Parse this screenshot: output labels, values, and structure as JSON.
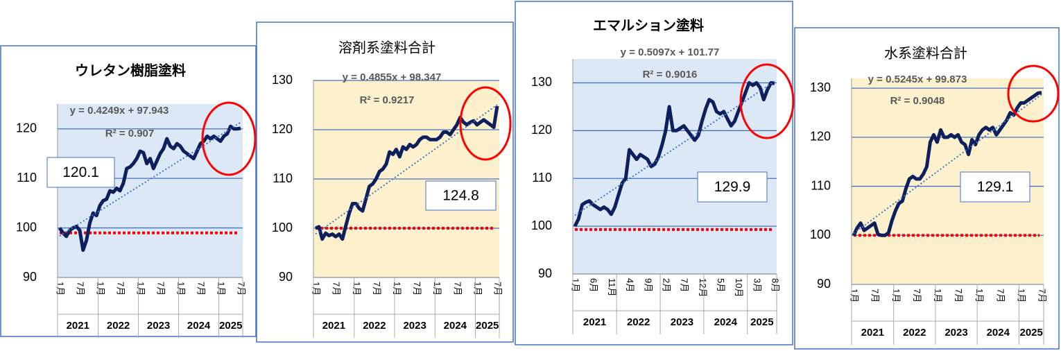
{
  "chart_data": [
    {
      "type": "line",
      "title": "ウレタン樹脂塗料",
      "categories": [
        "1月",
        null,
        null,
        null,
        null,
        null,
        "7月",
        null,
        null,
        null,
        null,
        null,
        "1月",
        null,
        null,
        null,
        null,
        null,
        "7月",
        null,
        null,
        null,
        null,
        null,
        "1月",
        null,
        null,
        null,
        null,
        null,
        "7月",
        null,
        null,
        null,
        null,
        null,
        "1月",
        null,
        null,
        null,
        null,
        null,
        "7月",
        null,
        null,
        null,
        null,
        null,
        "1月",
        null,
        null,
        null,
        null,
        null,
        "7月"
      ],
      "groups": [
        "2021",
        "2022",
        "2023",
        "2024",
        "2025"
      ],
      "color": "#0d1f5c",
      "values": [
        100,
        99,
        98.3,
        99.5,
        100,
        100.3,
        99.5,
        95.5,
        97.5,
        101,
        103,
        102.5,
        104.5,
        105.5,
        105.8,
        107.5,
        107.2,
        108,
        107.5,
        109,
        112,
        112.3,
        113,
        114,
        115.5,
        115.2,
        113,
        114,
        112,
        113.5,
        115,
        116,
        118,
        116.5,
        116,
        117,
        116.5,
        115.5,
        115,
        114.5,
        114,
        115.5,
        117,
        117.5,
        118.5,
        118,
        118.5,
        118,
        117.5,
        118.5,
        119,
        120.5,
        120,
        120,
        120.1
      ],
      "ylim": [
        90,
        125
      ],
      "yticks": [
        90,
        100,
        110,
        120
      ],
      "grid": true,
      "background": "#dce8f6",
      "trendline": {
        "slope": 0.4249,
        "intercept": 97.943,
        "label": "y = 0.4249x + 97.943",
        "r2_label": "R² = 0.907"
      },
      "reference_line": 99,
      "callout": "120.1"
    },
    {
      "type": "line",
      "title": "溶剤系塗料合計",
      "categories": [
        "1月",
        null,
        null,
        null,
        null,
        null,
        "7月",
        null,
        null,
        null,
        null,
        null,
        "1月",
        null,
        null,
        null,
        null,
        null,
        "7月",
        null,
        null,
        null,
        null,
        null,
        "1月",
        null,
        null,
        null,
        null,
        null,
        "7月",
        null,
        null,
        null,
        null,
        null,
        "1月",
        null,
        null,
        null,
        null,
        null,
        "7月",
        null,
        null,
        null,
        null,
        null,
        "1月",
        null,
        null,
        null,
        null,
        null,
        "7月"
      ],
      "groups": [
        "2021",
        "2022",
        "2023",
        "2024",
        "2025"
      ],
      "color": "#0d1f5c",
      "values": [
        100,
        100.3,
        97.8,
        99,
        98.5,
        98.8,
        98.3,
        98.8,
        97.8,
        100.5,
        103,
        105,
        105,
        104,
        103.5,
        106,
        108.5,
        109,
        110,
        111.5,
        112,
        113,
        115.5,
        115,
        116,
        114.5,
        116.5,
        116,
        117,
        116.5,
        117,
        118,
        118.5,
        118.5,
        118,
        118,
        118,
        118.5,
        119.5,
        119.5,
        119,
        120,
        121,
        122.5,
        121.5,
        121,
        121.5,
        121.8,
        121,
        121.5,
        122,
        121.5,
        121,
        120.5,
        124.8
      ],
      "ylim": [
        90,
        130
      ],
      "yticks": [
        90,
        100,
        110,
        120,
        130
      ],
      "grid": true,
      "background": "#fdf0cc",
      "trendline": {
        "slope": 0.4855,
        "intercept": 98.347,
        "label": "y = 0.4855x + 98.347",
        "r2_label": "R² = 0.9217"
      },
      "reference_line": 100,
      "callout": "124.8"
    },
    {
      "type": "line",
      "title": "エマルション塗料",
      "categories": [
        "1月",
        null,
        null,
        null,
        null,
        "6月",
        null,
        null,
        null,
        null,
        "11月",
        null,
        null,
        null,
        null,
        "4月",
        null,
        null,
        null,
        null,
        "9月",
        null,
        null,
        null,
        null,
        "2月",
        null,
        null,
        null,
        null,
        "7月",
        null,
        null,
        null,
        null,
        "12月",
        null,
        null,
        null,
        null,
        "5月",
        null,
        null,
        null,
        null,
        "10月",
        null,
        null,
        null,
        null,
        "3月",
        null,
        null,
        null,
        null,
        "8月"
      ],
      "groups": [
        "2021",
        "2022",
        "2023",
        "2024",
        "2025"
      ],
      "color": "#0d1f5c",
      "values": [
        100,
        101.5,
        104.5,
        105,
        105.3,
        104.5,
        104,
        103.5,
        104,
        103.5,
        102.5,
        104,
        106.5,
        109,
        110,
        116,
        115,
        114,
        115,
        114.5,
        114,
        112.5,
        113,
        114.5,
        117,
        120,
        125,
        120,
        120,
        120.5,
        121,
        120,
        119,
        118,
        119,
        122,
        124.5,
        126.5,
        126,
        124,
        123.5,
        124,
        122.5,
        121,
        122,
        124,
        126,
        128,
        130,
        129.5,
        130,
        129,
        126.5,
        128.5,
        130,
        129.9
      ],
      "ylim": [
        90,
        135
      ],
      "yticks": [
        90,
        100,
        110,
        120,
        130
      ],
      "grid": true,
      "background": "#dce8f6",
      "trendline": {
        "slope": 0.5097,
        "intercept": 101.77,
        "label": "y = 0.5097x + 101.77",
        "r2_label": "R² = 0.9016"
      },
      "reference_line": 99.3,
      "callout": "129.9"
    },
    {
      "type": "line",
      "title": "水系塗料合計",
      "categories": [
        "1月",
        null,
        null,
        null,
        null,
        null,
        "7月",
        null,
        null,
        null,
        null,
        null,
        "1月",
        null,
        null,
        null,
        null,
        null,
        "7月",
        null,
        null,
        null,
        null,
        null,
        "1月",
        null,
        null,
        null,
        null,
        null,
        "7月",
        null,
        null,
        null,
        null,
        null,
        "1月",
        null,
        null,
        null,
        null,
        null,
        "7月",
        null,
        null,
        null,
        null,
        null,
        "1月",
        null,
        null,
        null,
        null,
        null,
        "7月"
      ],
      "groups": [
        "2021",
        "2022",
        "2023",
        "2024",
        "2025"
      ],
      "color": "#0d1f5c",
      "values": [
        100,
        101.5,
        102.5,
        101,
        101.5,
        102,
        102.5,
        100.2,
        100,
        100,
        100.5,
        103,
        105,
        106.5,
        107,
        109.5,
        111.5,
        112,
        111.5,
        111.5,
        112.5,
        114,
        119,
        120.5,
        119,
        121.5,
        120,
        120,
        120.5,
        120,
        120.5,
        119,
        118.5,
        116.5,
        119.5,
        118.5,
        120.5,
        121.5,
        122,
        121.5,
        122,
        120.5,
        121.5,
        122.5,
        123.5,
        125,
        124.5,
        126,
        127,
        127,
        127.5,
        128,
        128.5,
        129,
        129.1
      ],
      "ylim": [
        90,
        132
      ],
      "yticks": [
        90,
        100,
        110,
        120,
        130
      ],
      "grid": true,
      "background": "#fdf0cc",
      "trendline": {
        "slope": 0.5245,
        "intercept": 99.873,
        "label": "y = 0.5245x + 99.873",
        "r2_label": "R² = 0.9048"
      },
      "reference_line": 100,
      "callout": "129.1"
    }
  ]
}
